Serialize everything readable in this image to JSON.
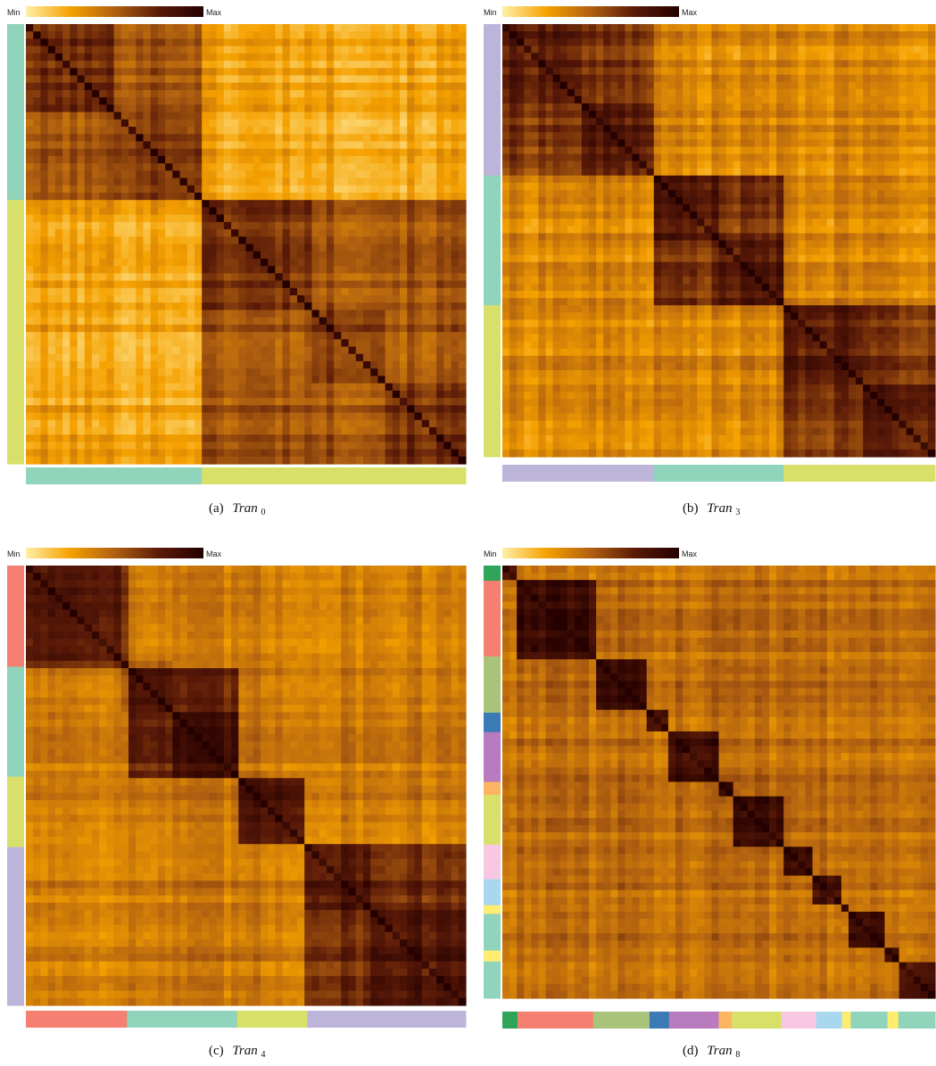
{
  "colorbar": {
    "min_label": "Min",
    "max_label": "Max",
    "stops": [
      "#fff0a8",
      "#f5a100",
      "#b06010",
      "#5a1a08",
      "#240000"
    ]
  },
  "chart_data": [
    {
      "type": "heatmap",
      "caption_prefix": "(a)",
      "caption_name": "Tran",
      "caption_sub": "0",
      "blocks": [
        {
          "size": 0.4,
          "color": "#8fd4bb"
        },
        {
          "size": 0.6,
          "color": "#d8e06a"
        }
      ],
      "sub_blocks": [
        0.2,
        0.2,
        0.25,
        0.17,
        0.18
      ],
      "base_level": 0.25
    },
    {
      "type": "heatmap",
      "caption_prefix": "(b)",
      "caption_name": "Tran",
      "caption_sub": "3",
      "blocks": [
        {
          "size": 0.35,
          "color": "#bdb5d9"
        },
        {
          "size": 0.3,
          "color": "#8fd4bb"
        },
        {
          "size": 0.35,
          "color": "#d8e06a"
        }
      ],
      "sub_blocks": [
        0.18,
        0.17,
        0.15,
        0.15,
        0.18,
        0.17
      ],
      "base_level": 0.35
    },
    {
      "type": "heatmap",
      "caption_prefix": "(c)",
      "caption_name": "Tran",
      "caption_sub": "4",
      "blocks": [
        {
          "size": 0.23,
          "color": "#f58071"
        },
        {
          "size": 0.25,
          "color": "#8fd4bb"
        },
        {
          "size": 0.16,
          "color": "#d8e06a"
        },
        {
          "size": 0.36,
          "color": "#bdb5d9"
        }
      ],
      "sub_blocks": [
        0.22,
        0.12,
        0.14,
        0.15,
        0.16,
        0.21
      ],
      "base_level": 0.4
    },
    {
      "type": "heatmap",
      "caption_prefix": "(d)",
      "caption_name": "Tran",
      "caption_sub": "8",
      "blocks": [
        {
          "size": 0.035,
          "color": "#2fa55a"
        },
        {
          "size": 0.175,
          "color": "#f58071"
        },
        {
          "size": 0.13,
          "color": "#a9c47a"
        },
        {
          "size": 0.045,
          "color": "#3a7bb5"
        },
        {
          "size": 0.115,
          "color": "#b97bbf"
        },
        {
          "size": 0.03,
          "color": "#fdb462"
        },
        {
          "size": 0.115,
          "color": "#d8e06a"
        },
        {
          "size": 0.08,
          "color": "#f8c8e2"
        },
        {
          "size": 0.06,
          "color": "#a8d8ee"
        },
        {
          "size": 0.02,
          "color": "#ffed6f"
        },
        {
          "size": 0.085,
          "color": "#8fd4bb"
        },
        {
          "size": 0.025,
          "color": "#ffed6f"
        },
        {
          "size": 0.085,
          "color": "#8fd4bb"
        }
      ],
      "sub_blocks": [
        0.035,
        0.175,
        0.13,
        0.045,
        0.115,
        0.03,
        0.115,
        0.08,
        0.06,
        0.02,
        0.085,
        0.025,
        0.085
      ],
      "base_level": 0.45
    }
  ]
}
